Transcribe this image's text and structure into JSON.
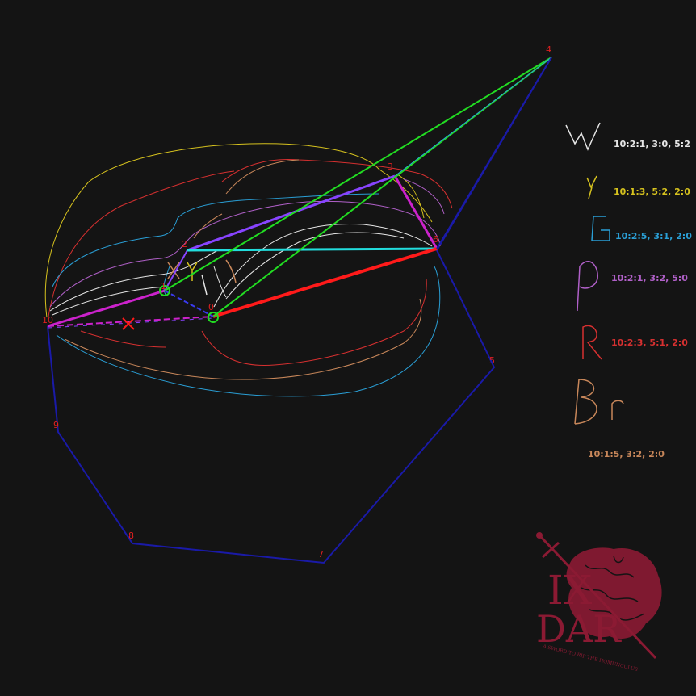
{
  "colors": {
    "background": "#141414",
    "hull": "#1a1aa8",
    "node_label": "#e02020",
    "green": "#22dd22",
    "magenta": "#cc22cc",
    "violet": "#8844ff",
    "cyan": "#22dddd",
    "red": "#ff1a1a",
    "brand": "#8b1a33"
  },
  "nodes": [
    {
      "id": "0",
      "label": "0"
    },
    {
      "id": "1",
      "label": "1"
    },
    {
      "id": "2",
      "label": "2"
    },
    {
      "id": "3",
      "label": "3"
    },
    {
      "id": "4",
      "label": "4"
    },
    {
      "id": "5",
      "label": "5"
    },
    {
      "id": "6",
      "label": "6"
    },
    {
      "id": "7",
      "label": "7"
    },
    {
      "id": "8",
      "label": "8"
    },
    {
      "id": "9",
      "label": "9"
    },
    {
      "id": "10",
      "label": "10"
    }
  ],
  "legend": [
    {
      "glyph": "W",
      "text": "10:2:1, 3:0, 5:2",
      "color": "#e6e6e6"
    },
    {
      "glyph": "y",
      "text": "10:1:3, 5:2, 2:0",
      "color": "#d6c21e"
    },
    {
      "glyph": "G",
      "text": "10:2:5, 3:1, 2:0",
      "color": "#2a9fd6"
    },
    {
      "glyph": "P",
      "text": "10:2:1, 3:2, 5:0",
      "color": "#b060c8"
    },
    {
      "glyph": "R",
      "text": "10:2:3, 5:1, 2:0",
      "color": "#d63030"
    },
    {
      "glyph": "Br",
      "text": "10:1:5, 3:2, 2:0",
      "color": "#c8875a"
    }
  ],
  "logo": {
    "title_line1": "IX",
    "title_line2": "DAR",
    "motto": "A SWORD TO RIP THE HOMUNCULUS",
    "icon": "sword-and-brain-icon"
  },
  "markers": {
    "cross_icon": "x-mark-icon",
    "circle_icon": "ring-marker-icon"
  }
}
